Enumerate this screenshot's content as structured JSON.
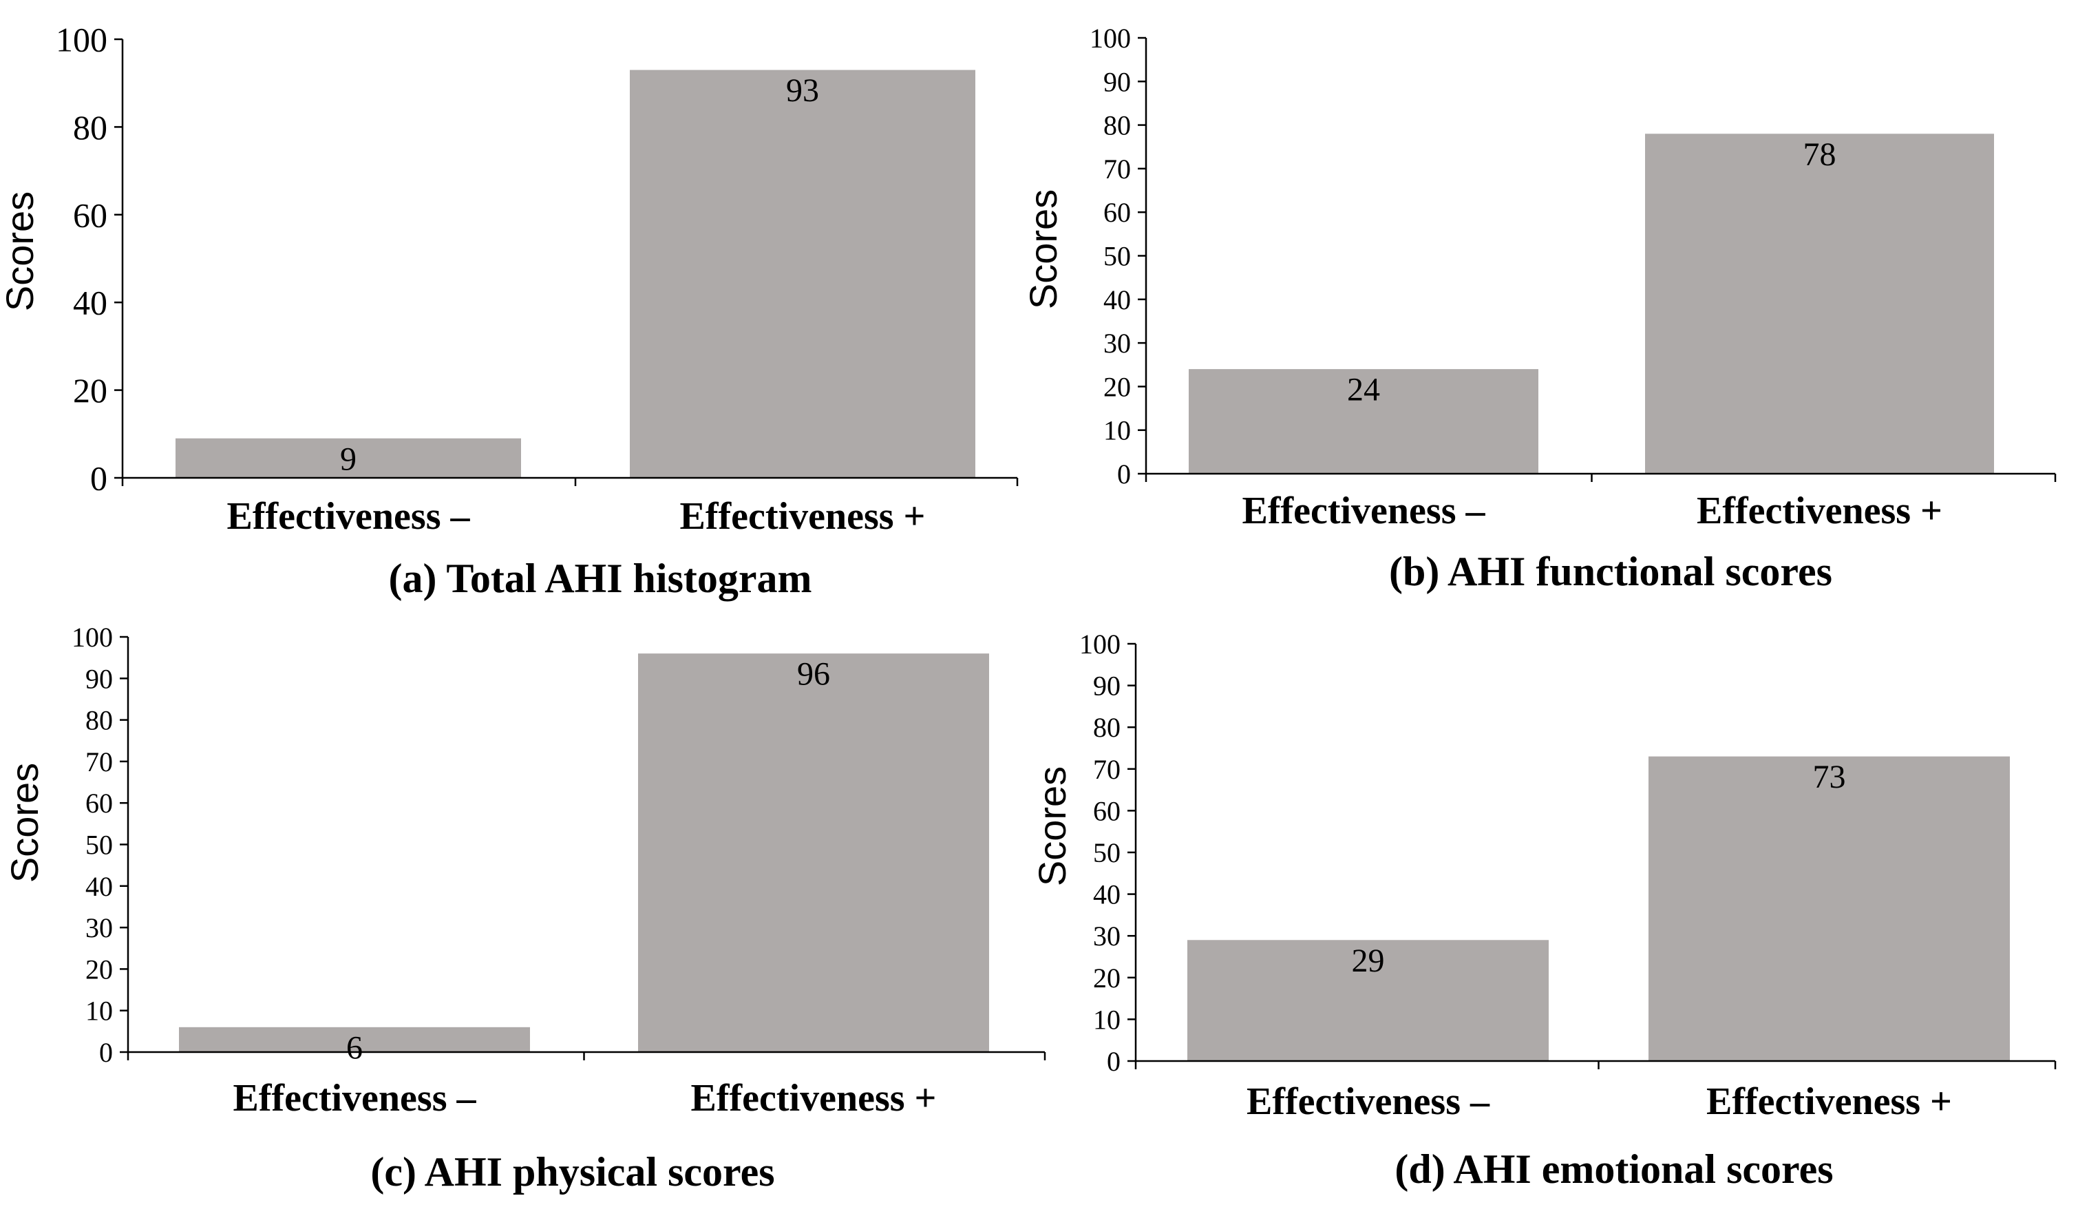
{
  "chart_data": [
    {
      "type": "bar",
      "title": "(a) Total AHI histogram",
      "categories": [
        "Effectiveness –",
        "Effectiveness +"
      ],
      "values": [
        9,
        93
      ],
      "data_labels": [
        "9",
        "93"
      ],
      "xlabel": "",
      "ylabel": "Scores",
      "ylim": [
        0,
        100
      ],
      "yticks": [
        "0",
        "20",
        "40",
        "60",
        "80",
        "100"
      ],
      "bar_color": "#aeaaa9",
      "grid": false
    },
    {
      "type": "bar",
      "title": "(b) AHI functional scores",
      "categories": [
        "Effectiveness –",
        "Effectiveness +"
      ],
      "values": [
        24,
        78
      ],
      "data_labels": [
        "24",
        "78"
      ],
      "xlabel": "",
      "ylabel": "Scores",
      "ylim": [
        0,
        100
      ],
      "yticks": [
        "0",
        "10",
        "20",
        "30",
        "40",
        "50",
        "60",
        "70",
        "80",
        "90",
        "100"
      ],
      "bar_color": "#aeaaa9",
      "grid": false
    },
    {
      "type": "bar",
      "title": "(c) AHI physical scores",
      "categories": [
        "Effectiveness –",
        "Effectiveness +"
      ],
      "values": [
        6,
        96
      ],
      "data_labels": [
        "6",
        "96"
      ],
      "xlabel": "",
      "ylabel": "Scores",
      "ylim": [
        0,
        100
      ],
      "yticks": [
        "0",
        "10",
        "20",
        "30",
        "40",
        "50",
        "60",
        "70",
        "80",
        "90",
        "100"
      ],
      "bar_color": "#aeaaa9",
      "grid": false
    },
    {
      "type": "bar",
      "title": "(d) AHI emotional scores",
      "categories": [
        "Effectiveness –",
        "Effectiveness +"
      ],
      "values": [
        29,
        73
      ],
      "data_labels": [
        "29",
        "73"
      ],
      "xlabel": "",
      "ylabel": "Scores",
      "ylim": [
        0,
        100
      ],
      "yticks": [
        "0",
        "10",
        "20",
        "30",
        "40",
        "50",
        "60",
        "70",
        "80",
        "90",
        "100"
      ],
      "bar_color": "#aeaaa9",
      "grid": false
    }
  ]
}
